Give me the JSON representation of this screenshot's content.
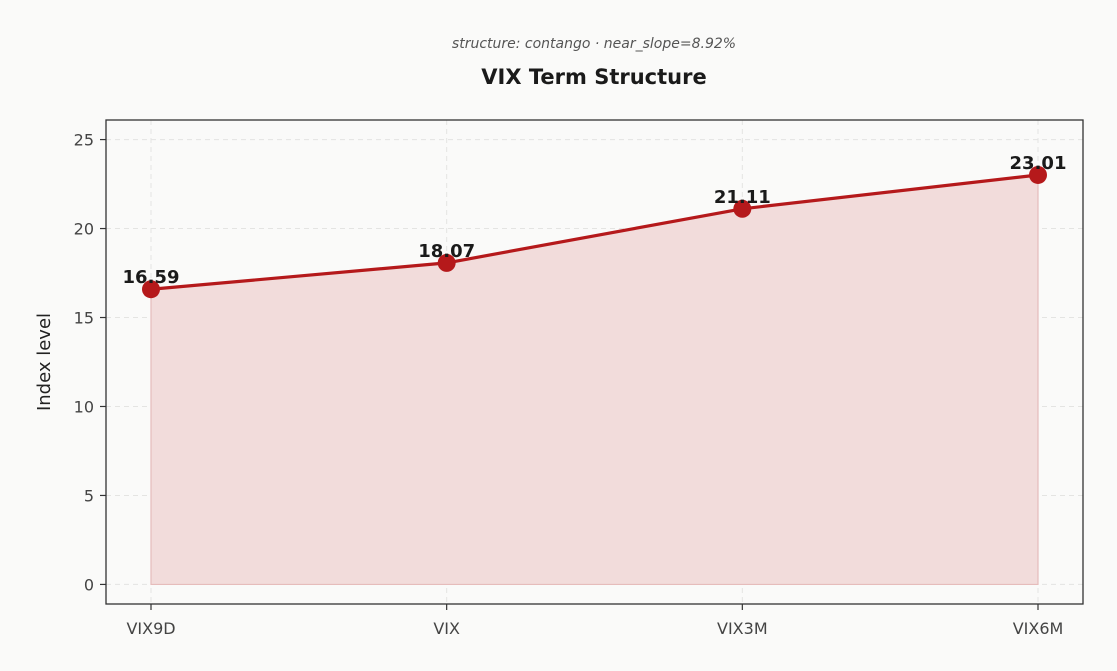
{
  "chart_data": {
    "type": "line",
    "title": "VIX Term Structure",
    "subtitle": "structure: contango · near_slope=8.92%",
    "ylabel": "Index level",
    "xlabel": "",
    "categories": [
      "VIX9D",
      "VIX",
      "VIX3M",
      "VIX6M"
    ],
    "series": [
      {
        "values": [
          16.59,
          18.07,
          21.11,
          23.01
        ],
        "labels": [
          "16.59",
          "18.07",
          "21.11",
          "23.01"
        ]
      }
    ],
    "ylim": [
      -1.1,
      26.1
    ],
    "yticks": [
      0,
      5,
      10,
      15,
      20,
      25
    ],
    "grid": true,
    "area_fill": true,
    "colors": {
      "line": "#b5191b",
      "fill": "#f2dcdb",
      "marker": "#b5191b"
    }
  }
}
